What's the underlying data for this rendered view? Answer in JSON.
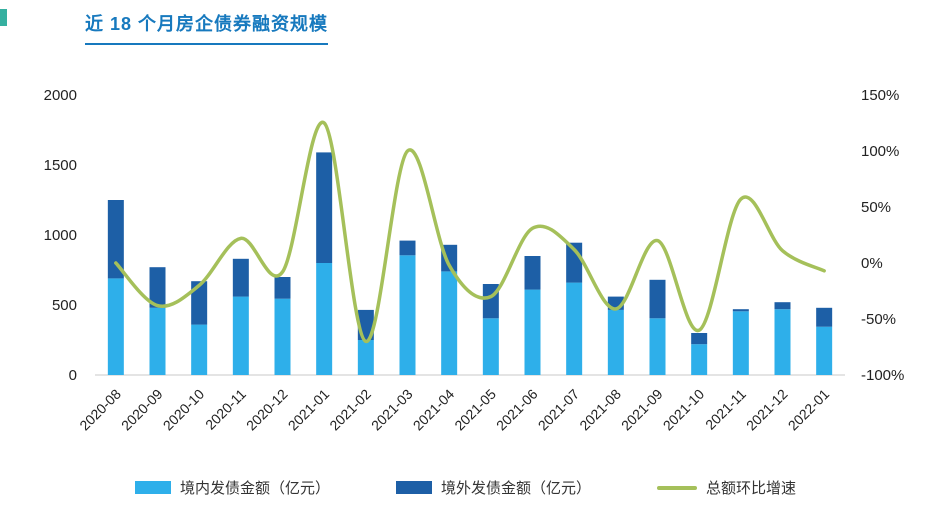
{
  "page": {
    "title": "近 18 个月房企债券融资规模"
  },
  "colors": {
    "title": "#1779be",
    "accent_mark": "#35b0a0",
    "axis_text": "#222222",
    "axis_line": "#c9c9c9",
    "bar_domestic": "#2eafea",
    "bar_overseas": "#1d5fa6",
    "growth_line": "#a5c05a"
  },
  "chart_data": {
    "type": "bar",
    "subtype": "stacked-bars-with-line-overlay",
    "title": "近 18 个月房企债券融资规模",
    "grid": false,
    "legend_position": "bottom",
    "categories": [
      "2020-08",
      "2020-09",
      "2020-10",
      "2020-11",
      "2020-12",
      "2021-01",
      "2021-02",
      "2021-03",
      "2021-04",
      "2021-05",
      "2021-06",
      "2021-07",
      "2021-08",
      "2021-09",
      "2021-10",
      "2021-11",
      "2021-12",
      "2022-01"
    ],
    "series": [
      {
        "name": "境内发债金额（亿元）",
        "type": "bar",
        "stack": "total",
        "color": "#2eafea",
        "values": [
          690,
          480,
          360,
          560,
          545,
          800,
          250,
          855,
          740,
          405,
          610,
          660,
          465,
          405,
          220,
          455,
          470,
          345
        ]
      },
      {
        "name": "境外发债金额（亿元）",
        "type": "bar",
        "stack": "total",
        "color": "#1d5fa6",
        "values": [
          560,
          290,
          310,
          270,
          155,
          790,
          215,
          105,
          190,
          245,
          240,
          285,
          95,
          275,
          80,
          15,
          50,
          135
        ]
      },
      {
        "name": "总额环比增速",
        "type": "line",
        "y_axis": "right",
        "unit": "%",
        "color": "#a5c05a",
        "values": [
          0,
          -38,
          -20,
          22,
          -8,
          125,
          -70,
          100,
          -2,
          -30,
          31,
          12,
          -41,
          20,
          -60,
          57,
          11,
          -7
        ]
      }
    ],
    "left_axis": {
      "min": 0,
      "max": 2000,
      "ticks": [
        0,
        500,
        1000,
        1500,
        2000
      ]
    },
    "right_axis": {
      "min": -100,
      "max": 150,
      "ticks": [
        {
          "value": 150,
          "label": "150%"
        },
        {
          "value": 100,
          "label": "100%"
        },
        {
          "value": 50,
          "label": "50%"
        },
        {
          "value": 0,
          "label": "0%"
        },
        {
          "value": -50,
          "label": "-50%"
        },
        {
          "value": -100,
          "label": "-100%"
        }
      ]
    }
  }
}
